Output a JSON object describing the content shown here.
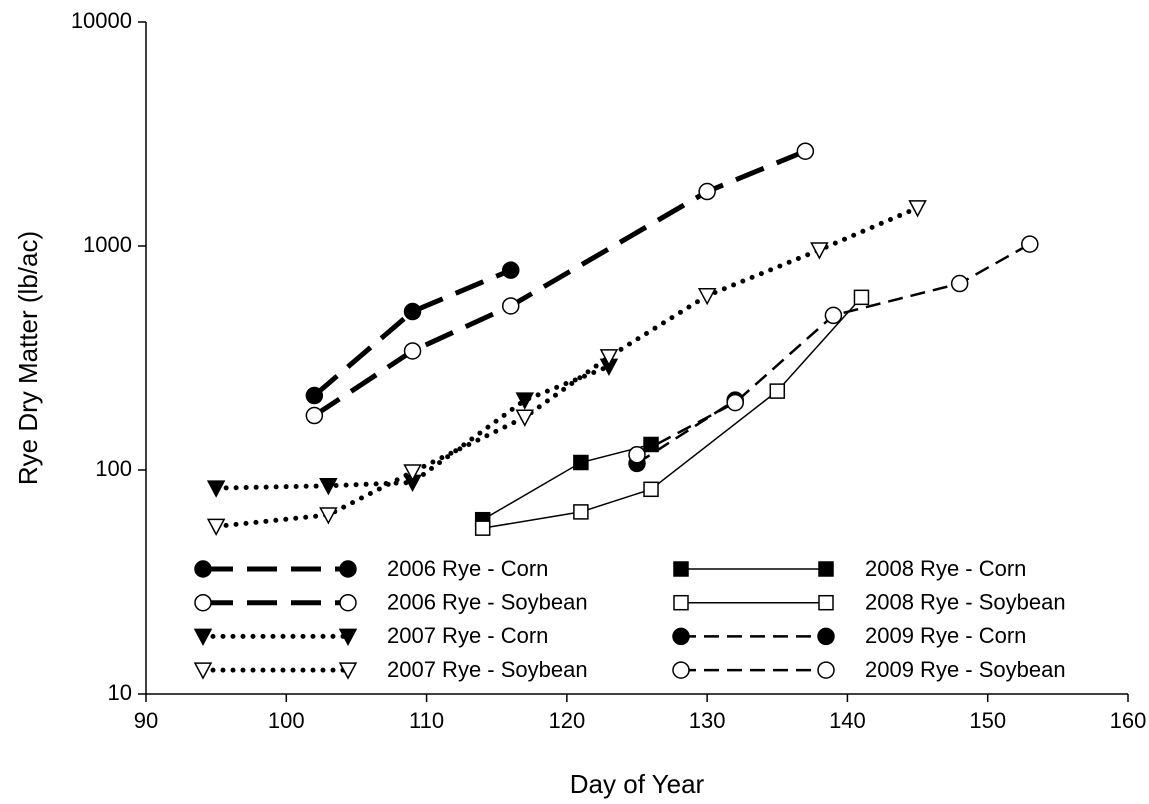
{
  "chart_data": {
    "type": "line",
    "xlabel": "Day of Year",
    "ylabel": "Rye Dry Matter (lb/ac)",
    "xlim": [
      90,
      160
    ],
    "xticks": [
      90,
      100,
      110,
      120,
      130,
      140,
      150,
      160
    ],
    "ylim": [
      10,
      10000
    ],
    "yticks": [
      10,
      100,
      1000,
      10000
    ],
    "yscale": "log",
    "legend": "lower left",
    "series": [
      {
        "name": "2006 Rye - Corn",
        "color": "#000000",
        "marker": "circle",
        "marker_fill": "#000000",
        "line_style": "long-dash",
        "x": [
          102,
          109,
          116
        ],
        "values": [
          215,
          510,
          780
        ]
      },
      {
        "name": "2006 Rye - Soybean",
        "color": "#000000",
        "marker": "circle",
        "marker_fill": "#ffffff",
        "line_style": "long-dash",
        "x": [
          102,
          109,
          116,
          130,
          137
        ],
        "values": [
          175,
          340,
          540,
          1750,
          2650
        ]
      },
      {
        "name": "2007 Rye - Corn",
        "color": "#000000",
        "marker": "triangle-down",
        "marker_fill": "#000000",
        "line_style": "dotted",
        "x": [
          95,
          103,
          109,
          117,
          123
        ],
        "values": [
          83,
          85,
          88,
          205,
          290
        ]
      },
      {
        "name": "2007 Rye - Soybean",
        "color": "#000000",
        "marker": "triangle-down",
        "marker_fill": "#ffffff",
        "line_style": "dotted",
        "x": [
          95,
          103,
          109,
          117,
          123,
          130,
          138,
          145
        ],
        "values": [
          56,
          63,
          98,
          172,
          320,
          600,
          960,
          1480
        ]
      },
      {
        "name": "2008 Rye - Corn",
        "color": "#000000",
        "marker": "square",
        "marker_fill": "#000000",
        "line_style": "solid",
        "x": [
          114,
          121,
          126
        ],
        "values": [
          60,
          108,
          130
        ]
      },
      {
        "name": "2008 Rye - Soybean",
        "color": "#000000",
        "marker": "square",
        "marker_fill": "#ffffff",
        "line_style": "solid",
        "x": [
          114,
          121,
          126,
          135,
          141
        ],
        "values": [
          55,
          65,
          82,
          225,
          590
        ]
      },
      {
        "name": "2009 Rye - Corn",
        "color": "#000000",
        "marker": "circle",
        "marker_fill": "#000000",
        "line_style": "dash",
        "x": [
          125,
          132
        ],
        "values": [
          107,
          205
        ]
      },
      {
        "name": "2009 Rye - Soybean",
        "color": "#000000",
        "marker": "circle",
        "marker_fill": "#ffffff",
        "line_style": "dash",
        "x": [
          125,
          132,
          139,
          148,
          153
        ],
        "values": [
          117,
          200,
          490,
          680,
          1020
        ]
      }
    ]
  }
}
